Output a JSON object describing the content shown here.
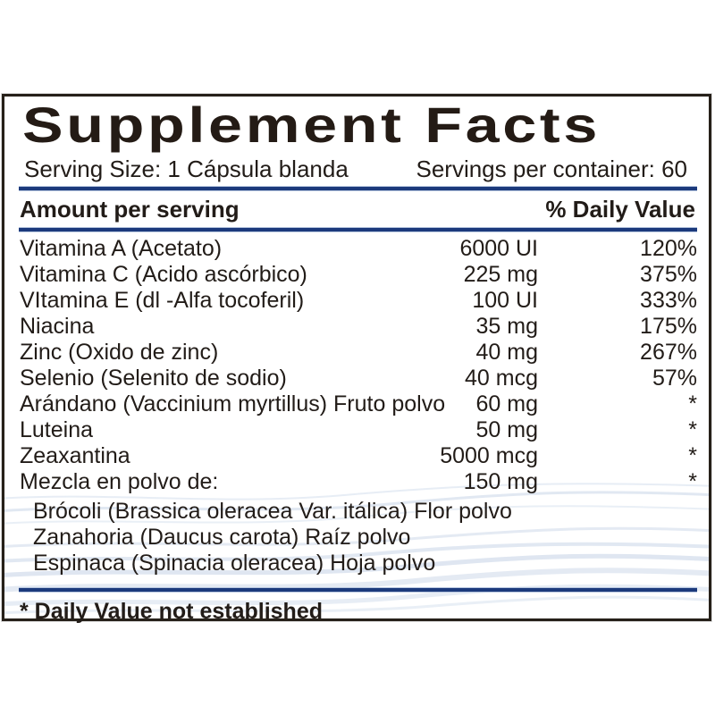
{
  "title": "Supplement Facts",
  "serving": {
    "size": "Serving Size: 1 Cápsula blanda",
    "per_container": "Servings per container: 60"
  },
  "header": {
    "amount": "Amount per serving",
    "dv": "% Daily Value"
  },
  "rows": [
    {
      "name": "Vitamina A (Acetato)",
      "amount": "6000 UI",
      "dv": "120%"
    },
    {
      "name": "Vitamina C (Acido ascórbico)",
      "amount": "225 mg",
      "dv": "375%"
    },
    {
      "name": "VItamina E (dl -Alfa tocoferil)",
      "amount": "100 UI",
      "dv": "333%"
    },
    {
      "name": "Niacina",
      "amount": "35 mg",
      "dv": "175%"
    },
    {
      "name": "Zinc (Oxido de zinc)",
      "amount": "40 mg",
      "dv": "267%"
    },
    {
      "name": "Selenio (Selenito de sodio)",
      "amount": "40 mcg",
      "dv": "57%"
    },
    {
      "name": "Arándano (Vaccinium myrtillus) Fruto polvo",
      "amount": "60 mg",
      "dv": "*"
    },
    {
      "name": "Luteina",
      "amount": "50 mg",
      "dv": "*"
    },
    {
      "name": "Zeaxantina",
      "amount": "5000 mcg",
      "dv": "*"
    },
    {
      "name": "Mezcla en polvo de:",
      "amount": "150 mg",
      "dv": "*"
    }
  ],
  "sub_rows": [
    "Brócoli (Brassica oleracea Var. itálica) Flor polvo",
    "Zanahoria (Daucus carota) Raíz polvo",
    "Espinaca (Spinacia oleracea) Hoja polvo"
  ],
  "footnote": "* Daily Value not established",
  "colors": {
    "rule_navy": "#1c3a7c",
    "rule_edge": "#b9c8e0",
    "border": "#262019",
    "text": "#221c18",
    "wave": "#c9d6e8"
  }
}
